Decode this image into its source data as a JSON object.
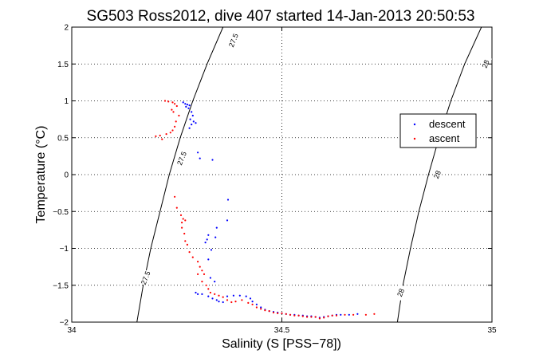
{
  "chart_data": {
    "type": "scatter",
    "title": "SG503 Ross2012, dive 407 started 14-Jan-2013 20:50:53",
    "xlabel": "Salinity (S [PSS−78])",
    "ylabel": "Temperature (°C)",
    "xlim": [
      34,
      35
    ],
    "ylim": [
      -2,
      2
    ],
    "xticks": [
      34,
      34.5,
      35
    ],
    "xtick_labels": [
      "34",
      "34.5",
      "35"
    ],
    "yticks": [
      -2,
      -1.5,
      -1,
      -0.5,
      0,
      0.5,
      1,
      1.5,
      2
    ],
    "ytick_labels": [
      "−2",
      "−1.5",
      "−1",
      "−0.5",
      "0",
      "0.5",
      "1",
      "1.5",
      "2"
    ],
    "grid": true,
    "legend": {
      "position": "right",
      "entries": [
        "descent",
        "ascent"
      ]
    },
    "colors": {
      "descent": "#0000ff",
      "ascent": "#ff0000",
      "contour": "#000000"
    },
    "contours": [
      {
        "label": "27.5",
        "points": [
          [
            34.155,
            -2
          ],
          [
            34.17,
            -1.5
          ],
          [
            34.188,
            -1
          ],
          [
            34.21,
            -0.5
          ],
          [
            34.232,
            0
          ],
          [
            34.258,
            0.5
          ],
          [
            34.288,
            1
          ],
          [
            34.322,
            1.5
          ],
          [
            34.36,
            2
          ]
        ],
        "label_points": [
          [
            34.176,
            -1.4
          ],
          [
            34.262,
            0.22
          ],
          [
            34.385,
            1.82
          ]
        ]
      },
      {
        "label": "28",
        "points": [
          [
            34.775,
            -2
          ],
          [
            34.788,
            -1.5
          ],
          [
            34.806,
            -1
          ],
          [
            34.826,
            -0.5
          ],
          [
            34.849,
            0
          ],
          [
            34.874,
            0.5
          ],
          [
            34.902,
            1
          ],
          [
            34.935,
            1.5
          ],
          [
            34.975,
            2
          ]
        ],
        "label_points": [
          [
            34.783,
            -1.6
          ],
          [
            34.87,
            0.0
          ],
          [
            34.985,
            1.5
          ]
        ]
      }
    ],
    "series": [
      {
        "name": "descent",
        "points": [
          [
            34.265,
            0.98
          ],
          [
            34.27,
            0.96
          ],
          [
            34.275,
            0.95
          ],
          [
            34.28,
            0.94
          ],
          [
            34.272,
            0.92
          ],
          [
            34.278,
            0.9
          ],
          [
            34.285,
            0.85
          ],
          [
            34.288,
            0.8
          ],
          [
            34.282,
            0.75
          ],
          [
            34.29,
            0.72
          ],
          [
            34.285,
            0.68
          ],
          [
            34.28,
            0.63
          ],
          [
            34.295,
            0.7
          ],
          [
            34.3,
            0.3
          ],
          [
            34.305,
            0.22
          ],
          [
            34.335,
            0.2
          ],
          [
            34.372,
            -0.34
          ],
          [
            34.37,
            -0.62
          ],
          [
            34.345,
            -0.72
          ],
          [
            34.342,
            -0.85
          ],
          [
            34.325,
            -0.82
          ],
          [
            34.322,
            -0.88
          ],
          [
            34.318,
            -0.92
          ],
          [
            34.332,
            -1.02
          ],
          [
            34.325,
            -1.15
          ],
          [
            34.33,
            -1.4
          ],
          [
            34.34,
            -1.45
          ],
          [
            34.295,
            -1.6
          ],
          [
            34.3,
            -1.62
          ],
          [
            34.31,
            -1.62
          ],
          [
            34.325,
            -1.65
          ],
          [
            34.335,
            -1.68
          ],
          [
            34.345,
            -1.7
          ],
          [
            34.35,
            -1.72
          ],
          [
            34.36,
            -1.73
          ],
          [
            34.37,
            -1.65
          ],
          [
            34.385,
            -1.64
          ],
          [
            34.4,
            -1.64
          ],
          [
            34.415,
            -1.65
          ],
          [
            34.425,
            -1.68
          ],
          [
            34.43,
            -1.72
          ],
          [
            34.44,
            -1.76
          ],
          [
            34.45,
            -1.8
          ],
          [
            34.46,
            -1.83
          ],
          [
            34.47,
            -1.85
          ],
          [
            34.48,
            -1.86
          ],
          [
            34.49,
            -1.87
          ],
          [
            34.5,
            -1.88
          ],
          [
            34.51,
            -1.89
          ],
          [
            34.52,
            -1.9
          ],
          [
            34.53,
            -1.9
          ],
          [
            34.54,
            -1.91
          ],
          [
            34.55,
            -1.91
          ],
          [
            34.56,
            -1.92
          ],
          [
            34.57,
            -1.92
          ],
          [
            34.58,
            -1.93
          ],
          [
            34.59,
            -1.94
          ],
          [
            34.6,
            -1.93
          ],
          [
            34.61,
            -1.92
          ],
          [
            34.62,
            -1.91
          ],
          [
            34.63,
            -1.9
          ],
          [
            34.64,
            -1.9
          ],
          [
            34.66,
            -1.9
          ],
          [
            34.68,
            -1.89
          ]
        ]
      },
      {
        "name": "ascent",
        "points": [
          [
            34.222,
            1.0
          ],
          [
            34.23,
            0.99
          ],
          [
            34.24,
            0.98
          ],
          [
            34.245,
            0.96
          ],
          [
            34.25,
            0.93
          ],
          [
            34.238,
            0.88
          ],
          [
            34.242,
            0.85
          ],
          [
            34.255,
            0.8
          ],
          [
            34.248,
            0.72
          ],
          [
            34.245,
            0.65
          ],
          [
            34.24,
            0.6
          ],
          [
            34.235,
            0.57
          ],
          [
            34.225,
            0.55
          ],
          [
            34.21,
            0.53
          ],
          [
            34.2,
            0.52
          ],
          [
            34.215,
            0.48
          ],
          [
            34.245,
            -0.3
          ],
          [
            34.25,
            -0.45
          ],
          [
            34.26,
            -0.55
          ],
          [
            34.265,
            -0.6
          ],
          [
            34.262,
            -0.65
          ],
          [
            34.27,
            -0.62
          ],
          [
            34.262,
            -0.72
          ],
          [
            34.268,
            -0.8
          ],
          [
            34.27,
            -0.9
          ],
          [
            34.275,
            -0.95
          ],
          [
            34.28,
            -1.05
          ],
          [
            34.288,
            -1.12
          ],
          [
            34.3,
            -1.18
          ],
          [
            34.305,
            -1.25
          ],
          [
            34.31,
            -1.3
          ],
          [
            34.3,
            -1.35
          ],
          [
            34.315,
            -1.35
          ],
          [
            34.31,
            -1.45
          ],
          [
            34.32,
            -1.5
          ],
          [
            34.325,
            -1.55
          ],
          [
            34.33,
            -1.6
          ],
          [
            34.34,
            -1.62
          ],
          [
            34.35,
            -1.64
          ],
          [
            34.36,
            -1.66
          ],
          [
            34.37,
            -1.7
          ],
          [
            34.38,
            -1.73
          ],
          [
            34.39,
            -1.72
          ],
          [
            34.405,
            -1.7
          ],
          [
            34.42,
            -1.74
          ],
          [
            34.43,
            -1.76
          ],
          [
            34.44,
            -1.8
          ],
          [
            34.45,
            -1.82
          ],
          [
            34.46,
            -1.84
          ],
          [
            34.47,
            -1.85
          ],
          [
            34.48,
            -1.87
          ],
          [
            34.49,
            -1.88
          ],
          [
            34.5,
            -1.88
          ],
          [
            34.51,
            -1.89
          ],
          [
            34.52,
            -1.9
          ],
          [
            34.53,
            -1.91
          ],
          [
            34.54,
            -1.91
          ],
          [
            34.55,
            -1.92
          ],
          [
            34.56,
            -1.93
          ],
          [
            34.57,
            -1.93
          ],
          [
            34.58,
            -1.93
          ],
          [
            34.59,
            -1.95
          ],
          [
            34.6,
            -1.94
          ],
          [
            34.61,
            -1.92
          ],
          [
            34.62,
            -1.91
          ],
          [
            34.63,
            -1.91
          ],
          [
            34.65,
            -1.9
          ],
          [
            34.67,
            -1.9
          ],
          [
            34.7,
            -1.9
          ],
          [
            34.72,
            -1.89
          ]
        ]
      }
    ]
  }
}
